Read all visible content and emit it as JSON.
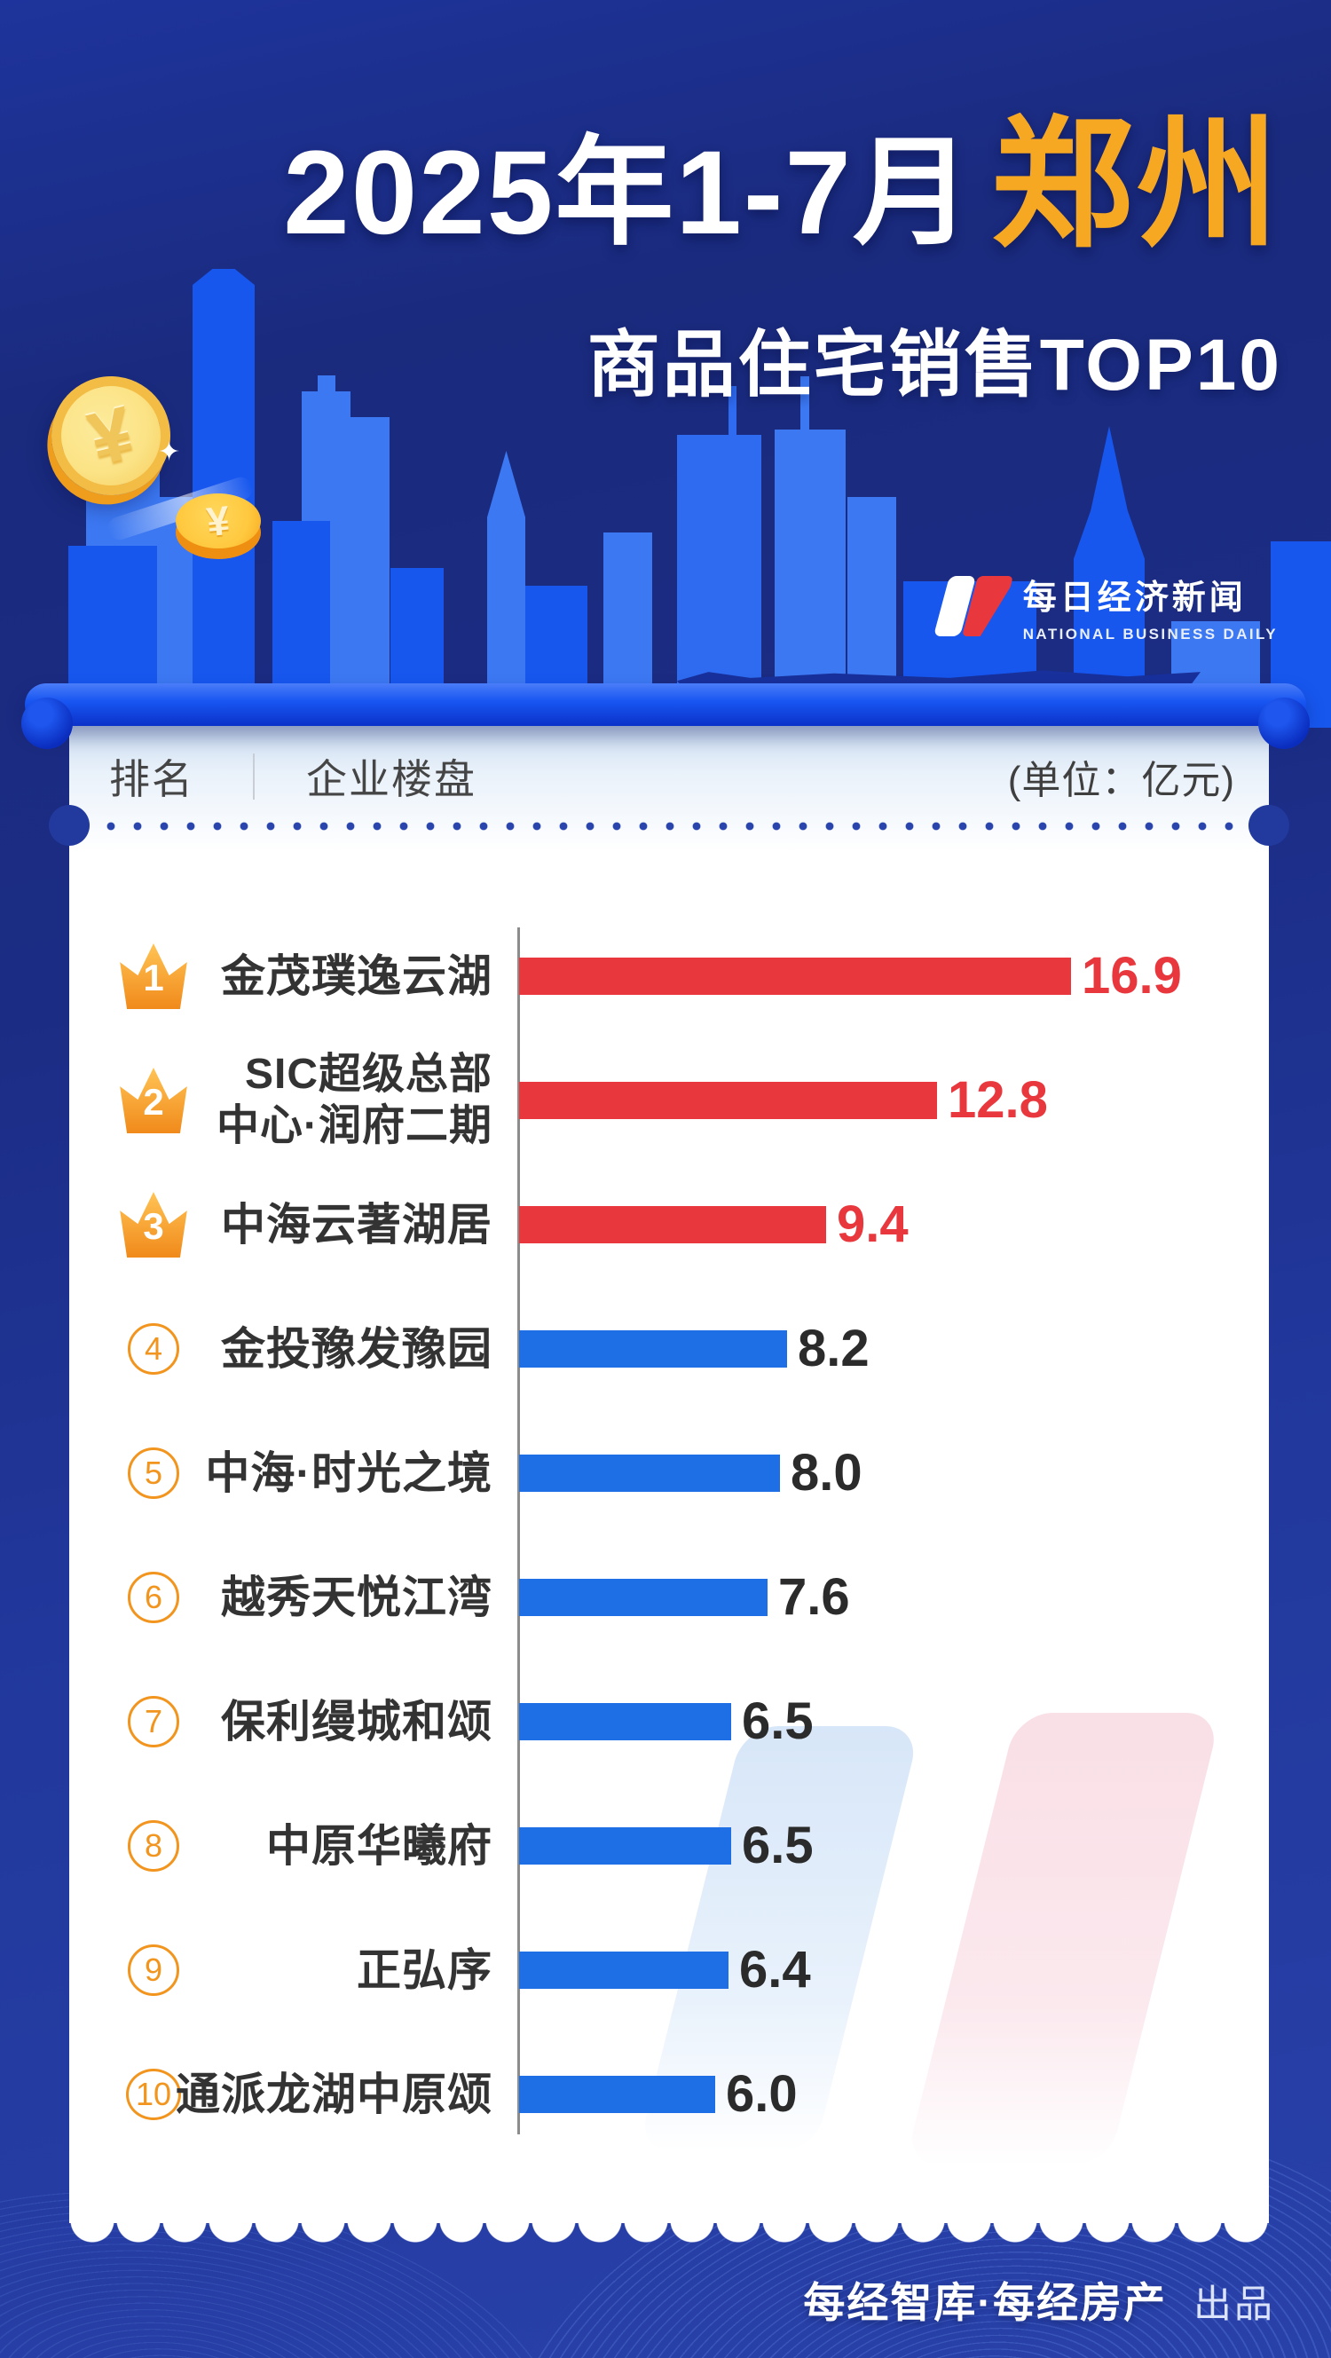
{
  "title": {
    "period": "2025年1-7月",
    "city": "郑州",
    "subtitle": "商品住宅销售TOP10"
  },
  "logo": {
    "cn": "每日经济新闻",
    "en": "NATIONAL BUSINESS DAILY"
  },
  "table_header": {
    "rank": "排名",
    "name": "企业楼盘",
    "unit": "(单位：亿元)"
  },
  "rows": [
    {
      "rank": "1",
      "name": "金茂璞逸云湖",
      "name2": "",
      "value": "16.9"
    },
    {
      "rank": "2",
      "name": "SIC超级总部",
      "name2": "中心·润府二期",
      "value": "12.8"
    },
    {
      "rank": "3",
      "name": "中海云著湖居",
      "name2": "",
      "value": "9.4"
    },
    {
      "rank": "4",
      "name": "金投豫发豫园",
      "name2": "",
      "value": "8.2"
    },
    {
      "rank": "5",
      "name": "中海·时光之境",
      "name2": "",
      "value": "8.0"
    },
    {
      "rank": "6",
      "name": "越秀天悦江湾",
      "name2": "",
      "value": "7.6"
    },
    {
      "rank": "7",
      "name": "保利缦城和颂",
      "name2": "",
      "value": "6.5"
    },
    {
      "rank": "8",
      "name": "中原华曦府",
      "name2": "",
      "value": "6.5"
    },
    {
      "rank": "9",
      "name": "正弘序",
      "name2": "",
      "value": "6.4"
    },
    {
      "rank": "10",
      "name": "通派龙湖中原颂",
      "name2": "",
      "value": "6.0"
    }
  ],
  "footer": {
    "producer": "每经智库·每经房产",
    "suffix": "出品"
  },
  "icons": {
    "coin_symbol": "¥",
    "sparkle": "✦"
  },
  "colors": {
    "bar_red": "#e8383d",
    "bar_blue": "#1e6fe6",
    "crown_orange_light": "#ffc455",
    "crown_orange_dark": "#f08a1b",
    "rank_circle_orange": "#f2951f",
    "title_city_orange": "#f7a823",
    "background_navy": "#1b2c84",
    "background_royal": "#2841a9",
    "rod_blue": "#1856f2",
    "dotted_line_blue": "#2945ad",
    "axis_gray": "#8c8c8c",
    "watermark_blue": "#d7e6f8",
    "watermark_pink": "#f9dfe6",
    "logo_red": "#e8373d"
  },
  "chart_data": {
    "type": "bar",
    "orientation": "horizontal",
    "title": "2025年1-7月郑州商品住宅销售TOP10",
    "unit": "亿元",
    "categories": [
      "金茂璞逸云湖",
      "SIC超级总部中心·润府二期",
      "中海云著湖居",
      "金投豫发豫园",
      "中海·时光之境",
      "越秀天悦江湾",
      "保利缦城和颂",
      "中原华曦府",
      "正弘序",
      "通派龙湖中原颂"
    ],
    "ranks": [
      1,
      2,
      3,
      4,
      5,
      6,
      7,
      8,
      9,
      10
    ],
    "values": [
      16.9,
      12.8,
      9.4,
      8.2,
      8.0,
      7.6,
      6.5,
      6.5,
      6.4,
      6.0
    ],
    "series_colors_by_rank": {
      "1-3": "#e8383d",
      "4-10": "#1e6fe6"
    },
    "xlim": [
      0,
      17
    ],
    "grid": false,
    "value_labels": "end-of-bar"
  }
}
